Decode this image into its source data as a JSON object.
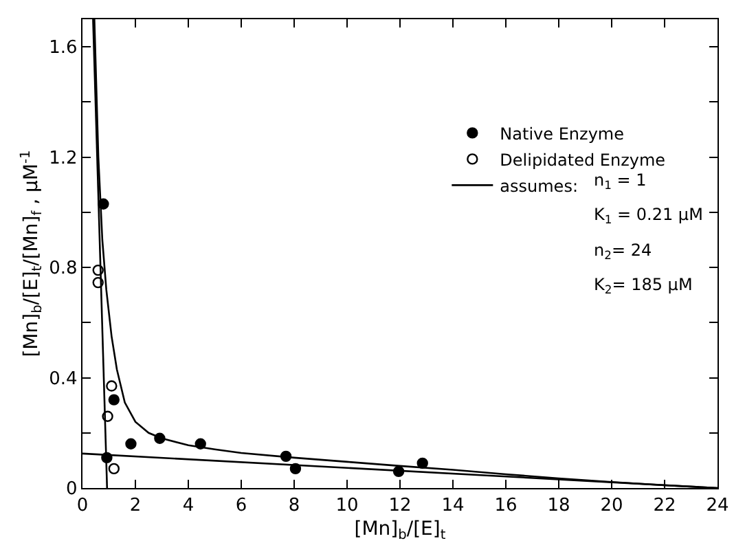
{
  "chart_data": {
    "type": "scatter",
    "xlabel": "[Mn]$_{b}$/[E]$_{t}$",
    "ylabel": "[Mn]$_{b}$/[E]$_{t}$/[Mn]$_{f}$ , μM$^{-1}$",
    "xlim": [
      0,
      24
    ],
    "ylim": [
      0,
      1.7
    ],
    "xticks": [
      0,
      2,
      4,
      6,
      8,
      10,
      12,
      14,
      16,
      18,
      20,
      22,
      24
    ],
    "yticks": [
      0,
      {
        "value": 0.2,
        "label": null
      },
      0.4,
      {
        "value": 0.6,
        "label": null
      },
      0.8,
      {
        "value": 1.0,
        "label": null
      },
      1.2,
      {
        "value": 1.4,
        "label": null
      },
      1.6
    ],
    "legend": "top right",
    "series": [
      {
        "name": "Native Enzyme",
        "marker": "circle",
        "color": "#000000",
        "x": [
          0.79,
          0.92,
          1.19,
          1.83,
          2.92,
          4.46,
          7.69,
          8.05,
          11.95,
          12.85
        ],
        "values": [
          1.03,
          0.11,
          0.32,
          0.16,
          0.18,
          0.16,
          0.115,
          0.07,
          0.06,
          0.09
        ]
      },
      {
        "name": "Delipidated Enzyme",
        "marker": "circle",
        "color": "#ffffff",
        "x": [
          0.59,
          0.59,
          0.95,
          1.1,
          1.19
        ],
        "values": [
          0.79,
          0.745,
          0.26,
          0.37,
          0.07
        ]
      },
      {
        "name": "assumes:",
        "type": "line",
        "color": "#000000",
        "x": [
          0.45,
          0.6,
          0.75,
          0.9,
          1.1,
          1.3,
          1.6,
          2.0,
          2.5,
          3.0,
          4.0,
          5.0,
          6.0,
          8.0,
          10.0,
          12.0,
          14.0,
          16.0,
          18.0,
          20.0,
          22.0,
          24.0
        ],
        "values": [
          1.7,
          1.2,
          0.9,
          0.72,
          0.55,
          0.43,
          0.31,
          0.24,
          0.2,
          0.18,
          0.155,
          0.14,
          0.127,
          0.11,
          0.095,
          0.08,
          0.066,
          0.05,
          0.035,
          0.022,
          0.01,
          0.0
        ]
      },
      {
        "type": "line",
        "color": "#000000",
        "x": [
          0.4,
          0.93
        ],
        "values": [
          1.7,
          0.0
        ]
      },
      {
        "type": "line",
        "color": "#000000",
        "x": [
          0,
          24
        ],
        "values": [
          0.125,
          0.0
        ]
      }
    ],
    "annotations": [
      "n$_{1}$ = 1",
      "K$_{1}$ = 0.21 μM",
      "n$_{2}$= 24",
      "K$_{2}$= 185 μM"
    ]
  }
}
